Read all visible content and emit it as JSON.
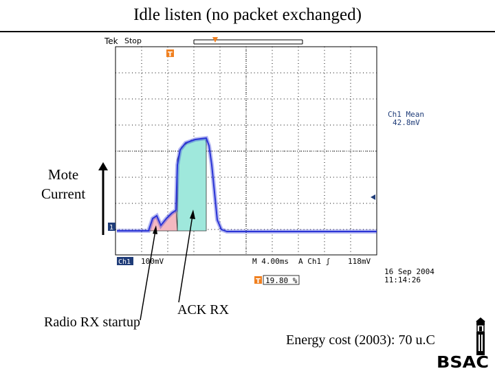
{
  "slide": {
    "title": "Idle listen (no packet exchanged)"
  },
  "scope": {
    "header_brand": "Tek",
    "header_state": "Stop",
    "trigger_marker": "T",
    "ch1_marker": "1",
    "measurement_title": "Ch1 Mean",
    "measurement_value": "42.8mV",
    "ch1_label": "Ch1",
    "ch1_scale": "100mV",
    "timebase": "M 4.00ms",
    "trigger_source": "A  Ch1  ʃ",
    "trigger_level": "118mV",
    "trigger_pos_marker": "T",
    "trigger_position": "19.80 %",
    "date": "16 Sep  2004",
    "time": "11:14:26"
  },
  "annotations": {
    "mote_line1": "Mote",
    "mote_line2": "Current",
    "radio_rx": "Radio RX startup",
    "ack_rx": "ACK RX",
    "energy_cost": "Energy cost (2003): 70 u.C"
  },
  "logo": {
    "text": "BSAC"
  },
  "colors": {
    "trace": "#2a34d6",
    "startup_fill": "#f4b8c0",
    "ack_fill": "#9fe8dc",
    "marker_orange": "#f08020",
    "ch1_badge": "#1f3c78"
  }
}
